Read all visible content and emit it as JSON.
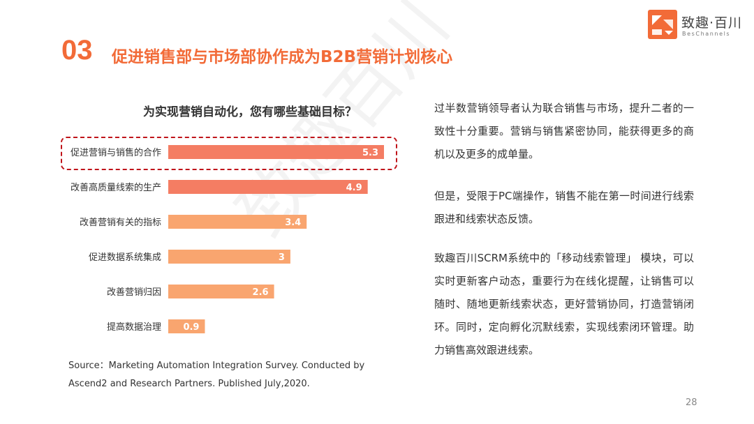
{
  "header": {
    "number": "03",
    "title": "促进销售部与市场部协作成为B2B营销计划核心"
  },
  "logo": {
    "name": "致趣·百川",
    "subtitle": "BesChannels",
    "accent": "#f26b38"
  },
  "watermark": "致趣百川",
  "chart_data": {
    "type": "bar",
    "orientation": "horizontal",
    "title": "为实现营销自动化，您有哪些基础目标？",
    "categories": [
      "促进营销与销售的合作",
      "改善高质量线索的生产",
      "改善营销有关的指标",
      "促进数据系统集成",
      "改善营销归因",
      "提高数据治理"
    ],
    "values": [
      5.3,
      4.9,
      3.4,
      3,
      2.6,
      0.9
    ],
    "value_labels": [
      "5.3",
      "4.9",
      "3.4",
      "3",
      "2.6",
      "0.9"
    ],
    "colors": [
      "#f47d63",
      "#f47d63",
      "#f9a56f",
      "#f9a56f",
      "#f9a56f",
      "#f9a56f"
    ],
    "xlim": [
      0,
      5.3
    ],
    "grid": false,
    "highlight_category": "促进营销与销售的合作",
    "highlight_color": "#c0141a"
  },
  "source": "Source：Marketing Automation Integration Survey. Conducted by Ascend2 and Research Partners. Published July,2020.",
  "paragraphs": [
    "过半数营销领导者认为联合销售与市场，提升二者的一致性十分重要。营销与销售紧密协同，能获得更多的商机以及更多的成单量。",
    "但是，受限于PC端操作，销售不能在第一时间进行线索跟进和线索状态反馈。",
    "致趣百川SCRM系统中的「移动线索管理」 模块，可以实时更新客户动态，重要行为在线化提醒，让销售可以随时、随地更新线索状态，更好营销协同，打造营销闭环。同时，定向孵化沉默线索，实现线索闭环管理。助力销售高效跟进线索。"
  ],
  "page_number": "28"
}
